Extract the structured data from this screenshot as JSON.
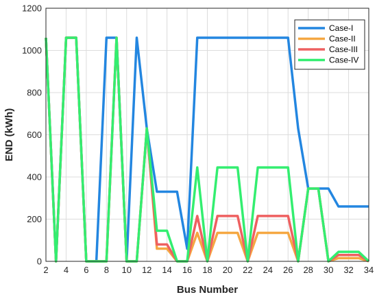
{
  "chart_data": {
    "type": "line",
    "xlabel": "Bus Number",
    "ylabel": "END (kWh)",
    "xlim": [
      2,
      34
    ],
    "ylim": [
      0,
      1200
    ],
    "xticks": [
      2,
      4,
      6,
      8,
      10,
      12,
      14,
      16,
      18,
      20,
      22,
      24,
      26,
      28,
      30,
      32,
      34
    ],
    "yticks": [
      0,
      200,
      400,
      600,
      800,
      1000,
      1200
    ],
    "grid": true,
    "legend_position": "top-right",
    "x": [
      2,
      3,
      4,
      5,
      6,
      7,
      8,
      9,
      10,
      11,
      12,
      13,
      14,
      15,
      16,
      17,
      18,
      19,
      20,
      21,
      22,
      23,
      24,
      25,
      26,
      27,
      28,
      29,
      30,
      31,
      32,
      33,
      34
    ],
    "series": [
      {
        "name": "Case-I",
        "color": "#2386e0",
        "values": [
          1060,
          0,
          1060,
          1060,
          0,
          0,
          1060,
          1060,
          0,
          1060,
          630,
          330,
          330,
          330,
          60,
          1060,
          1060,
          1060,
          1060,
          1060,
          1060,
          1060,
          1060,
          1060,
          1060,
          630,
          345,
          345,
          345,
          260,
          260,
          260,
          260
        ]
      },
      {
        "name": "Case-II",
        "color": "#f5a742",
        "values": [
          1060,
          0,
          1060,
          1060,
          0,
          0,
          0,
          1060,
          0,
          0,
          630,
          60,
          60,
          0,
          0,
          135,
          0,
          135,
          135,
          135,
          0,
          135,
          135,
          135,
          135,
          0,
          345,
          345,
          0,
          15,
          15,
          15,
          0
        ]
      },
      {
        "name": "Case-III",
        "color": "#ee6060",
        "values": [
          1060,
          0,
          1060,
          1060,
          0,
          0,
          0,
          1060,
          0,
          0,
          630,
          80,
          80,
          0,
          0,
          215,
          0,
          215,
          215,
          215,
          0,
          215,
          215,
          215,
          215,
          0,
          345,
          345,
          0,
          30,
          30,
          30,
          0
        ]
      },
      {
        "name": "Case-IV",
        "color": "#33ee70",
        "values": [
          1060,
          0,
          1060,
          1060,
          0,
          0,
          0,
          1060,
          0,
          0,
          630,
          145,
          145,
          0,
          0,
          445,
          0,
          445,
          445,
          445,
          0,
          445,
          445,
          445,
          445,
          0,
          345,
          345,
          0,
          45,
          45,
          45,
          0
        ]
      }
    ]
  }
}
